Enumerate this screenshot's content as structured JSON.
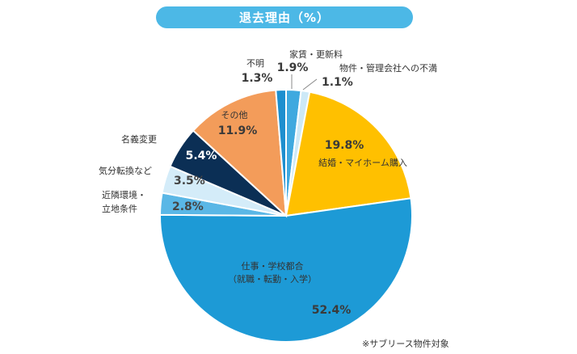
{
  "chart_data": {
    "type": "pie",
    "title": "退去理由（%）",
    "note": "※サブリース物件対象",
    "slices": [
      {
        "label": "家賃・更新料",
        "value": 1.9,
        "color": "#3fa9df"
      },
      {
        "label": "物件・管理会社への不満",
        "value": 1.1,
        "color": "#cde9f7"
      },
      {
        "label": "結婚・マイホーム購入",
        "value": 19.8,
        "color": "#ffc000"
      },
      {
        "label": "仕事・学校都合\n（就職・転勤・入学）",
        "value": 52.4,
        "color": "#1d9ad6"
      },
      {
        "label": "近隣環境・\n立地条件",
        "value": 2.8,
        "color": "#5ab7e6"
      },
      {
        "label": "気分転換など",
        "value": 3.5,
        "color": "#d4ecf9"
      },
      {
        "label": "名義変更",
        "value": 5.4,
        "color": "#0b2f55"
      },
      {
        "label": "その他",
        "value": 11.9,
        "color": "#f39c5a"
      },
      {
        "label": "不明",
        "value": 1.3,
        "color": "#1d8fcf"
      }
    ],
    "value_labels": [
      "1.9%",
      "1.1%",
      "19.8%",
      "52.4%",
      "2.8%",
      "3.5%",
      "5.4%",
      "11.9%",
      "1.3%"
    ]
  }
}
